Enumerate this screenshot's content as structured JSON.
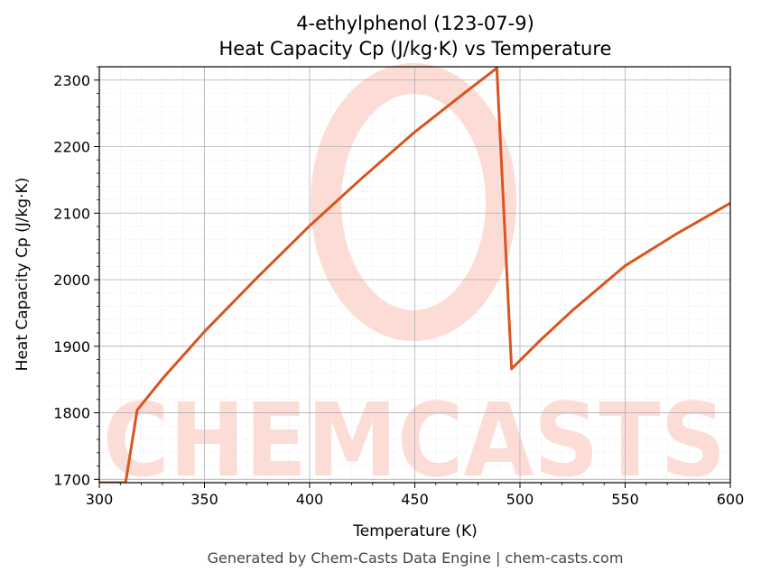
{
  "chart_data": {
    "type": "line",
    "title_line1": "4-ethylphenol (123-07-9)",
    "title_line2": "Heat Capacity Cp (J/kg·K) vs Temperature",
    "xlabel": "Temperature (K)",
    "ylabel": "Heat Capacity Cp (J/kg·K)",
    "xlim": [
      300,
      600
    ],
    "ylim": [
      1695,
      2320
    ],
    "xticks": [
      300,
      350,
      400,
      450,
      500,
      550,
      600
    ],
    "yticks": [
      1700,
      1800,
      1900,
      2000,
      2100,
      2200,
      2300
    ],
    "grid": true,
    "series": [
      {
        "color": "#d9541e",
        "x": [
          300,
          312.5,
          318,
          330,
          350,
          375,
          400,
          425,
          450,
          475,
          489,
          496,
          510,
          525,
          550,
          575,
          600
        ],
        "y": [
          1695,
          1695,
          1804,
          1851,
          1922,
          2003,
          2081,
          2153,
          2222,
          2284,
          2318,
          1866,
          1910,
          1954,
          2021,
          2070,
          2115
        ]
      }
    ]
  },
  "footer": "Generated by Chem-Casts Data Engine | chem-casts.com",
  "watermark": {
    "text": "CHEMCASTS",
    "color": "#fddcd6"
  }
}
